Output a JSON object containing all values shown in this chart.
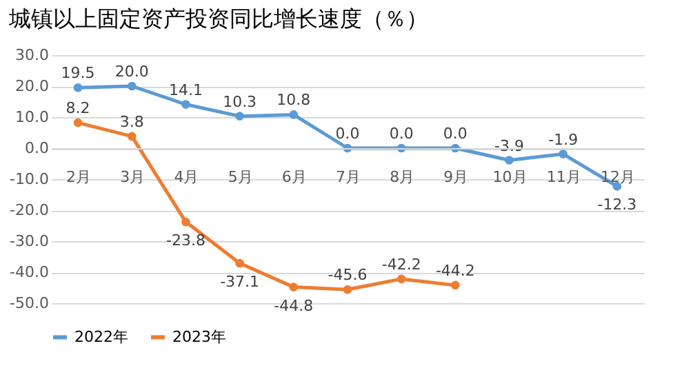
{
  "chart_data": {
    "type": "line",
    "title": "城镇以上固定资产投资同比增长速度（％）",
    "categories": [
      "2月",
      "3月",
      "4月",
      "5月",
      "6月",
      "7月",
      "8月",
      "9月",
      "10月",
      "11月",
      "12月"
    ],
    "series": [
      {
        "name": "2022年",
        "color": "#5b9bd5",
        "values": [
          19.5,
          20.0,
          14.1,
          10.3,
          10.8,
          0.0,
          0.0,
          0.0,
          -3.9,
          -1.9,
          -12.3
        ],
        "value_labels": [
          "19.5",
          "20.0",
          "14.1",
          "10.3",
          "10.8",
          "0.0",
          "0.0",
          "0.0",
          "-3.9",
          "-1.9",
          "-12.3"
        ]
      },
      {
        "name": "2023年",
        "color": "#ed7d31",
        "values": [
          8.2,
          3.8,
          -23.8,
          -37.1,
          -44.8,
          -45.6,
          -42.2,
          -44.2,
          null,
          null,
          null
        ],
        "value_labels": [
          "8.2",
          "3.8",
          "-23.8",
          "-37.1",
          "-44.8",
          "-45.6",
          "-42.2",
          "-44.2",
          null,
          null,
          null
        ]
      }
    ],
    "ylim": [
      -50,
      30
    ],
    "yticks": [
      {
        "value": 30,
        "label": "30.0"
      },
      {
        "value": 20,
        "label": "20.0"
      },
      {
        "value": 10,
        "label": "10.0"
      },
      {
        "value": 0,
        "label": "0.0"
      },
      {
        "value": -10,
        "label": "-10.0"
      },
      {
        "value": -20,
        "label": "-20.0"
      },
      {
        "value": -30,
        "label": "-30.0"
      },
      {
        "value": -40,
        "label": "-40.0"
      },
      {
        "value": -50,
        "label": "-50.0"
      }
    ],
    "grid": "y",
    "legend": "bottom",
    "marker": "circle",
    "line_style": "solid"
  }
}
